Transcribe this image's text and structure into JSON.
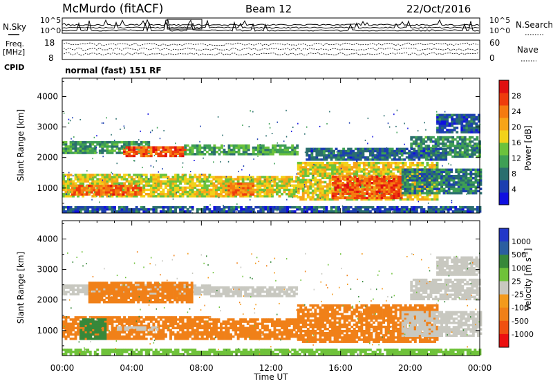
{
  "header": {
    "station": "McMurdo (fitACF)",
    "beam": "Beam 12",
    "date": "22/Oct/2016"
  },
  "noise_panel": {
    "left_label": "N.Sky",
    "right_label": "N.Search",
    "left_ticks": [
      "10^5",
      "10^0"
    ],
    "right_ticks": [
      "10^5",
      "10^0"
    ]
  },
  "freq_panel": {
    "left_label_line1": "Freq.",
    "left_label_line2": "[MHz]",
    "left_ticks": [
      "18",
      "8"
    ],
    "right_label": "Nave",
    "right_ticks": [
      "60",
      "0"
    ]
  },
  "cpid": {
    "label": "CPID",
    "text": "normal (fast) 151 RF"
  },
  "colors": {
    "power_scale": [
      "#1010e0",
      "#1c3fb0",
      "#2a6e6e",
      "#3e9f55",
      "#6bc23c",
      "#f2d21a",
      "#f7a418",
      "#f57a10",
      "#ee3c0c",
      "#e01010"
    ],
    "velocity_scale": [
      "#2237c8",
      "#2b5ea0",
      "#37883a",
      "#6fc23a",
      "#c8c8c0",
      "#f39a1c",
      "#f08018",
      "#f05010",
      "#ec1010"
    ]
  },
  "chart_data": [
    {
      "type": "heatmap",
      "name": "power",
      "xlabel": "",
      "ylabel": "Slant Range [km]",
      "xlim": [
        0,
        24
      ],
      "ylim": [
        180,
        4600
      ],
      "yticks": [
        1000,
        2000,
        3000,
        4000
      ],
      "colorbar": {
        "label": "Power [dB]",
        "ticks": [
          4,
          8,
          12,
          16,
          20,
          24,
          28
        ],
        "range": [
          0,
          32
        ]
      },
      "bands": [
        {
          "t0": 0.0,
          "t1": 5.0,
          "r0": 2120,
          "r1": 2480,
          "level": 11
        },
        {
          "t0": 3.5,
          "t1": 7.0,
          "r0": 2020,
          "r1": 2320,
          "level": 26
        },
        {
          "t0": 7.0,
          "t1": 13.5,
          "r0": 2080,
          "r1": 2420,
          "level": 12
        },
        {
          "t0": 0.0,
          "t1": 8.5,
          "r0": 700,
          "r1": 1420,
          "level": 17
        },
        {
          "t0": 0.5,
          "t1": 4.5,
          "r0": 760,
          "r1": 1080,
          "level": 25
        },
        {
          "t0": 8.5,
          "t1": 13.5,
          "r0": 700,
          "r1": 1400,
          "level": 18
        },
        {
          "t0": 9.5,
          "t1": 11.0,
          "r0": 760,
          "r1": 1160,
          "level": 24
        },
        {
          "t0": 13.5,
          "t1": 21.5,
          "r0": 600,
          "r1": 1800,
          "level": 18
        },
        {
          "t0": 15.5,
          "t1": 19.5,
          "r0": 640,
          "r1": 1400,
          "level": 26
        },
        {
          "t0": 19.5,
          "t1": 24.0,
          "r0": 800,
          "r1": 1600,
          "level": 9
        },
        {
          "t0": 20.0,
          "t1": 24.0,
          "r0": 2000,
          "r1": 2700,
          "level": 10
        },
        {
          "t0": 21.5,
          "t1": 24.0,
          "r0": 2800,
          "r1": 3400,
          "level": 6
        },
        {
          "t0": 14.0,
          "t1": 22.0,
          "r0": 1900,
          "r1": 2300,
          "level": 7
        },
        {
          "t0": 0.0,
          "t1": 24.0,
          "r0": 200,
          "r1": 360,
          "level": 6
        }
      ]
    },
    {
      "type": "heatmap",
      "name": "velocity",
      "xlabel": "Time UT",
      "ylabel": "Slant Range [km]",
      "xlim": [
        0,
        24
      ],
      "ylim": [
        180,
        4600
      ],
      "yticks": [
        1000,
        2000,
        3000,
        4000
      ],
      "xticks": [
        "00:00",
        "04:00",
        "08:00",
        "12:00",
        "16:00",
        "20:00",
        "00:00"
      ],
      "colorbar": {
        "label": "Velocity [m s^-1]",
        "ticks": [
          "1000",
          "500",
          "100",
          "25",
          "-25",
          "-100",
          "-500",
          "-1000"
        ]
      },
      "bands": [
        {
          "t0": 0.0,
          "t1": 8.5,
          "r0": 2160,
          "r1": 2460,
          "level": -10
        },
        {
          "t0": 1.5,
          "t1": 7.5,
          "r0": 1900,
          "r1": 2600,
          "level": -250
        },
        {
          "t0": 8.5,
          "t1": 13.5,
          "r0": 2100,
          "r1": 2420,
          "level": -10
        },
        {
          "t0": 0.0,
          "t1": 8.5,
          "r0": 700,
          "r1": 1420,
          "level": -250
        },
        {
          "t0": 1.0,
          "t1": 2.5,
          "r0": 700,
          "r1": 1400,
          "level": 300
        },
        {
          "t0": 3.0,
          "t1": 5.5,
          "r0": 1000,
          "r1": 1100,
          "level": -10
        },
        {
          "t0": 8.5,
          "t1": 13.5,
          "r0": 700,
          "r1": 1380,
          "level": -250
        },
        {
          "t0": 13.5,
          "t1": 21.5,
          "r0": 600,
          "r1": 1800,
          "level": -250
        },
        {
          "t0": 19.5,
          "t1": 24.0,
          "r0": 800,
          "r1": 1600,
          "level": -10
        },
        {
          "t0": 20.0,
          "t1": 24.0,
          "r0": 2000,
          "r1": 2700,
          "level": -10
        },
        {
          "t0": 21.5,
          "t1": 24.0,
          "r0": 2800,
          "r1": 3400,
          "level": -10
        },
        {
          "t0": 0.0,
          "t1": 24.0,
          "r0": 200,
          "r1": 360,
          "level": 50
        }
      ]
    }
  ]
}
